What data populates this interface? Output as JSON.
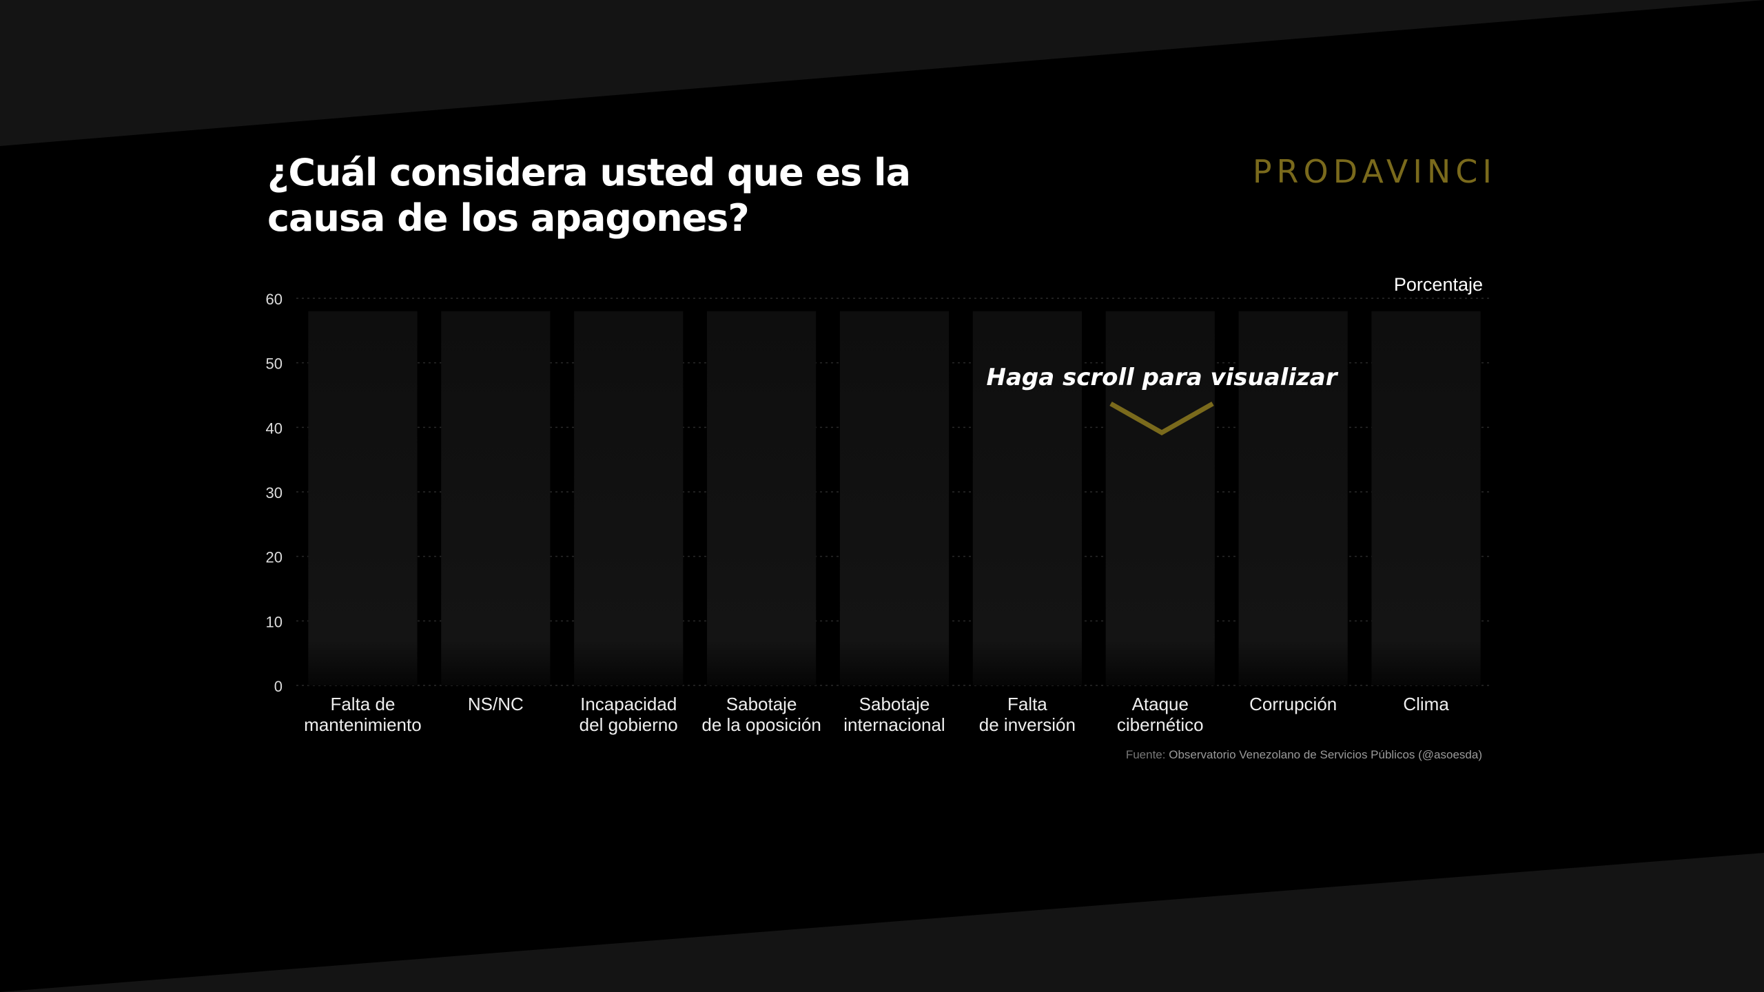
{
  "title": "¿Cuál considera usted que es la causa de los apagones?",
  "logo_text": "PRODAVINCI",
  "scroll_hint": "Haga scroll para visualizar",
  "source": {
    "prefix": "Fuente:",
    "name": "Observatorio Venezolano de Servicios Públicos (@asoesda)"
  },
  "colors": {
    "background": "#000000",
    "bar": "#111111",
    "accent": "#7a6a1c"
  },
  "chart_data": {
    "type": "bar",
    "title": "¿Cuál considera usted que es la causa de los apagones?",
    "ylabel": "Porcentaje",
    "ylim": [
      0,
      60
    ],
    "yticks": [
      0,
      10,
      20,
      30,
      40,
      50,
      60
    ],
    "grid": true,
    "categories": [
      [
        "Falta de",
        "mantenimiento"
      ],
      [
        "NS/NC"
      ],
      [
        "Incapacidad",
        "del gobierno"
      ],
      [
        "Sabotaje",
        "de la oposición"
      ],
      [
        "Sabotaje",
        "internacional"
      ],
      [
        "Falta",
        "de inversión"
      ],
      [
        "Ataque",
        "cibernético"
      ],
      [
        "Corrupción"
      ],
      [
        "Clima"
      ]
    ],
    "values": [
      null,
      null,
      null,
      null,
      null,
      null,
      null,
      null,
      null
    ],
    "placeholder_level": 58
  }
}
